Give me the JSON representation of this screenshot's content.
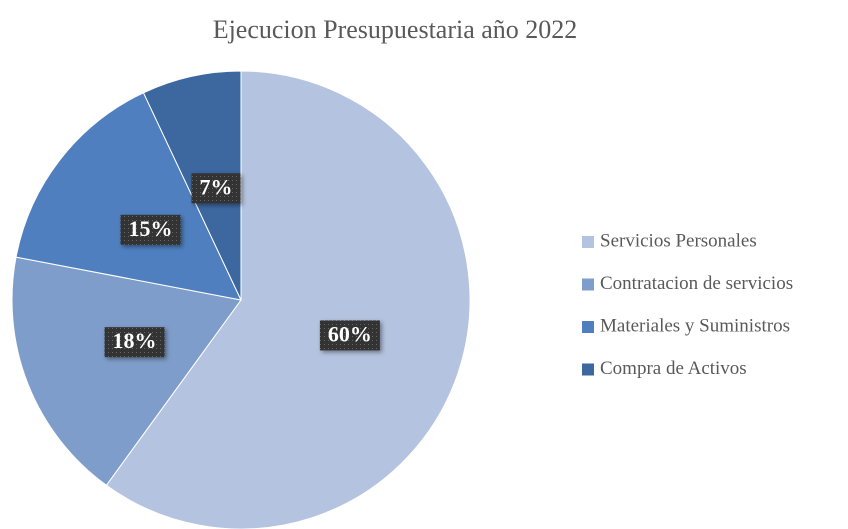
{
  "chart_data": {
    "type": "pie",
    "title": "Ejecucion Presupuestaria año 2022",
    "categories": [
      "Servicios Personales",
      "Contratacion de servicios",
      "Materiales y Suministros",
      "Compra de Activos"
    ],
    "values": [
      60,
      18,
      15,
      7
    ],
    "value_labels": [
      "60%",
      "18%",
      "15%",
      "7%"
    ],
    "colors": [
      "#b4c3df",
      "#7f9dca",
      "#4f7fbf",
      "#3d679f"
    ],
    "legend": "right"
  }
}
